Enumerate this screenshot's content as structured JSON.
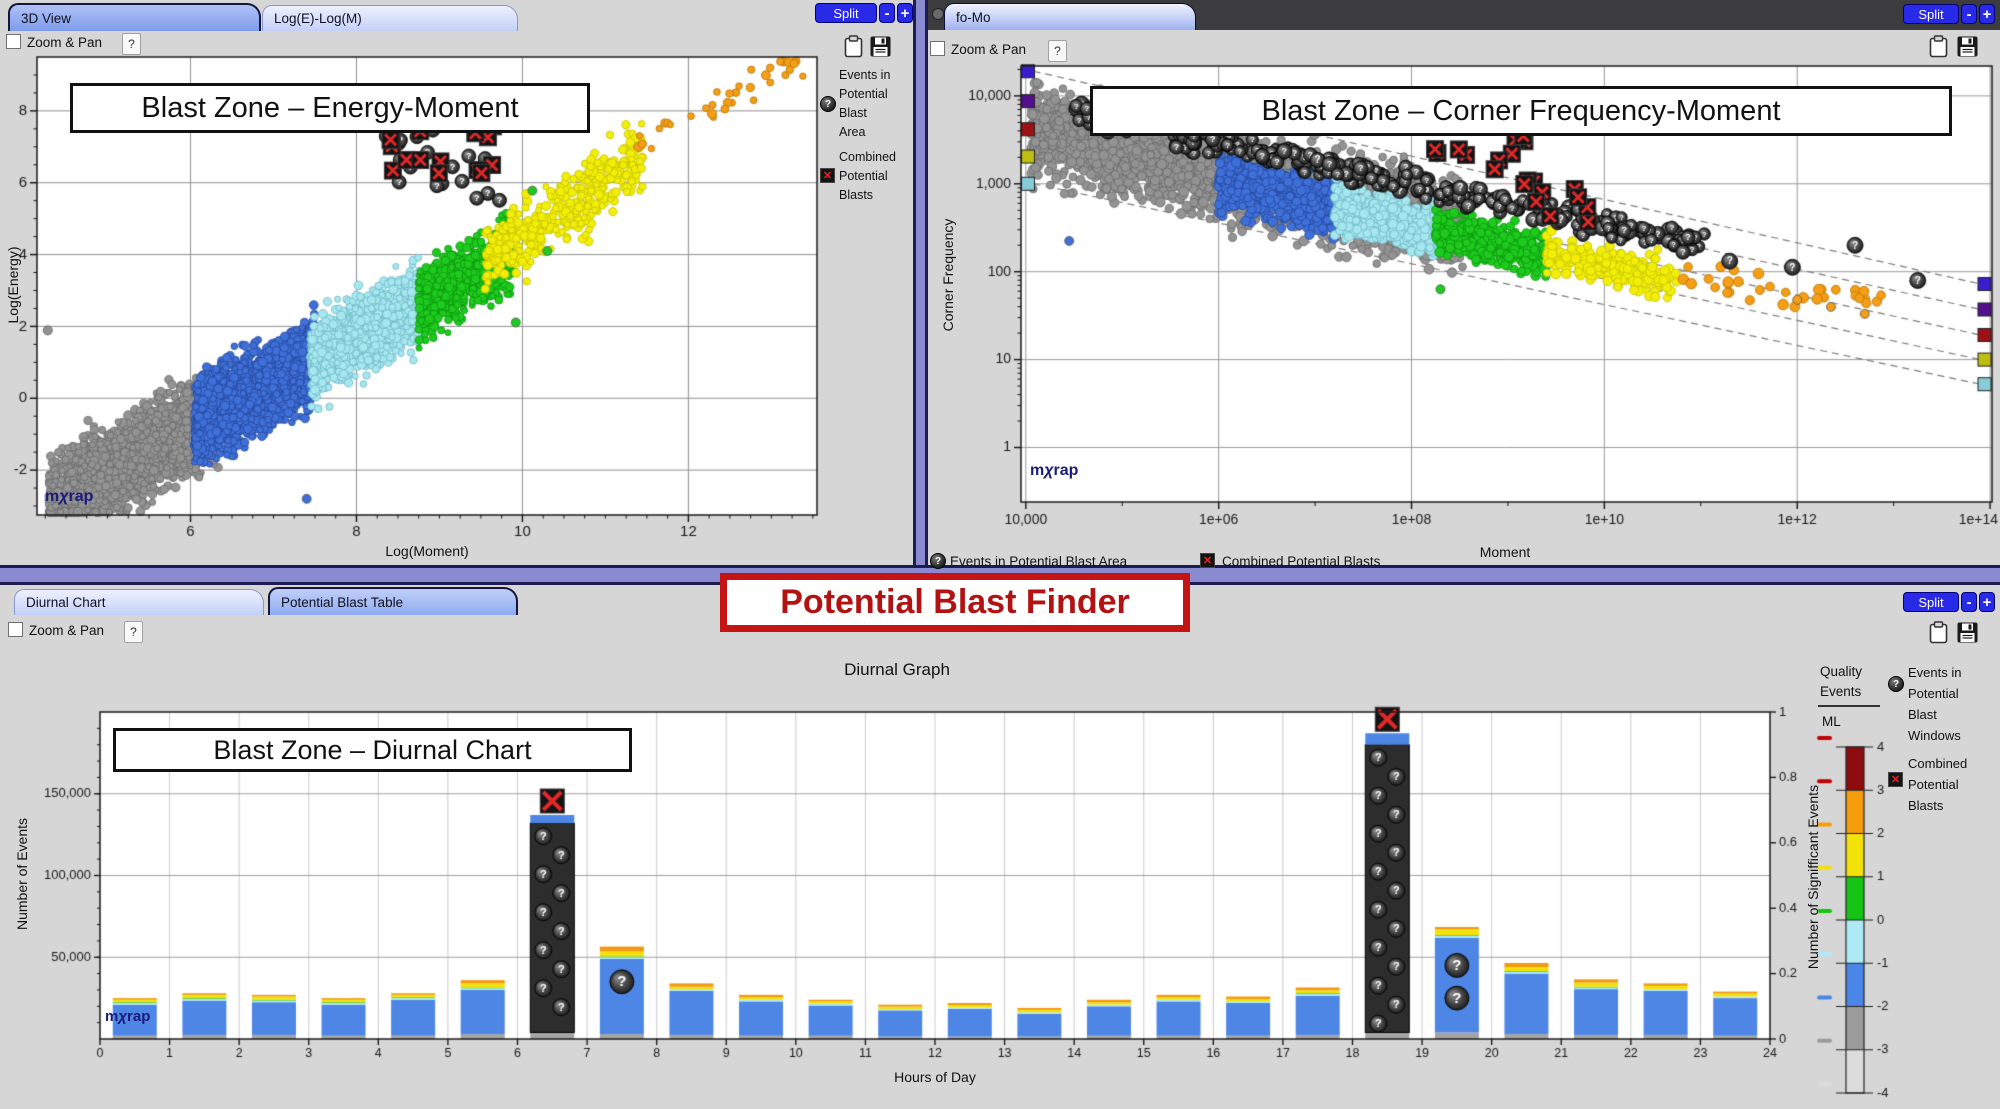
{
  "colors": {
    "accent_blue_button": "#2929e8",
    "panel_bg": "#d6d6d6",
    "divider_purple": "#8a8ad0",
    "banner_red": "#c41414",
    "watermark_navy": "#1b1b78"
  },
  "icons": {
    "query_sphere_glyph": "?",
    "red_x_glyph": "✕",
    "clipboard": "clipboard-icon",
    "save": "save-icon"
  },
  "panel_em": {
    "tabs": [
      {
        "label": "3D View"
      },
      {
        "label": "Log(E)-Log(M)"
      }
    ],
    "split_label": "Split",
    "minus_label": "-",
    "plus_label": "+",
    "zoom_pan_label": "Zoom & Pan",
    "help_label": "?",
    "overlay_title": "Blast Zone – Energy-Moment",
    "watermark_m": "m",
    "watermark_chi": "χ",
    "watermark_rap": "rap",
    "xlabel": "Log(Moment)",
    "ylabel": "Log(Energy)",
    "legend": [
      {
        "icon": "query-sphere-icon",
        "lines": [
          "Events in",
          "Potential",
          "Blast",
          "Area"
        ]
      },
      {
        "icon": "red-x-icon",
        "lines": [
          "Combined",
          "Potential",
          "Blasts"
        ]
      }
    ]
  },
  "panel_fm": {
    "tab_label": "fo-Mo",
    "split_label": "Split",
    "minus_label": "-",
    "plus_label": "+",
    "zoom_pan_label": "Zoom & Pan",
    "help_label": "?",
    "overlay_title": "Blast Zone – Corner Frequency-Moment",
    "watermark_m": "m",
    "watermark_chi": "χ",
    "watermark_rap": "rap",
    "xlabel": "Moment",
    "ylabel": "Corner Frequency",
    "legend": [
      {
        "icon": "query-sphere-icon",
        "label": "Events in Potential Blast Area"
      },
      {
        "icon": "red-x-icon",
        "label": "Combined Potential Blasts"
      }
    ]
  },
  "banner": {
    "title": "Potential Blast Finder"
  },
  "panel_di": {
    "tabs": [
      {
        "label": "Diurnal Chart"
      },
      {
        "label": "Potential Blast Table"
      }
    ],
    "split_label": "Split",
    "minus_label": "-",
    "plus_label": "+",
    "zoom_pan_label": "Zoom & Pan",
    "help_label": "?",
    "chart_title": "Diurnal Graph",
    "overlay_title": "Blast Zone – Diurnal Chart",
    "watermark_m": "m",
    "watermark_chi": "χ",
    "watermark_rap": "rap",
    "xlabel": "Hours of Day",
    "ylabel_left": "Number of Events",
    "ylabel_right": "Number of Signifficant Events",
    "quality_legend": {
      "line1": "Quality",
      "line2": "Events",
      "ml_label": "ML"
    },
    "legend_right": [
      {
        "icon": "query-sphere-icon",
        "lines": [
          "Events in",
          "Potential",
          "Blast",
          "Windows"
        ]
      },
      {
        "icon": "red-x-icon",
        "lines": [
          "Combined",
          "Potential",
          "Blasts"
        ]
      }
    ]
  },
  "chart_data": [
    {
      "name": "energy_moment",
      "type": "scatter",
      "title": "Blast Zone – Energy-Moment",
      "xlabel": "Log(Moment)",
      "ylabel": "Log(Energy)",
      "xlim": [
        4.15,
        13.55
      ],
      "ylim": [
        -3.25,
        9.5
      ],
      "xticks": [
        6,
        8,
        10,
        12
      ],
      "yticks": [
        8,
        6,
        4,
        2,
        0,
        -2
      ],
      "trend_slope": 1.25,
      "trend_intercept": -8.3,
      "bands": [
        {
          "name": "gray",
          "color": "#939393",
          "edge": "#6b6b6b",
          "count": 2600,
          "xrange": [
            4.3,
            6.35
          ],
          "spread": 1.0
        },
        {
          "name": "blue",
          "color": "#3e70d9",
          "edge": "#27479b",
          "count": 2100,
          "xrange": [
            6.05,
            7.5
          ],
          "spread": 0.95
        },
        {
          "name": "cyan",
          "color": "#a6e7ef",
          "edge": "#6fb9c6",
          "count": 1300,
          "xrange": [
            7.45,
            8.8
          ],
          "spread": 0.85
        },
        {
          "name": "green",
          "color": "#1dcb1d",
          "edge": "#0f9410",
          "count": 800,
          "xrange": [
            8.75,
            9.9
          ],
          "spread": 0.78
        },
        {
          "name": "yellow",
          "color": "#f2ee06",
          "edge": "#c5c106",
          "count": 430,
          "xrange": [
            9.55,
            11.45
          ],
          "spread": 0.75,
          "slope": 1.55,
          "intercept": -11.0
        },
        {
          "name": "orange",
          "color": "#f59d15",
          "edge": "#b87608",
          "count": 34,
          "xrange": [
            11.3,
            13.45
          ],
          "spread": 0.45,
          "slope": 1.3,
          "intercept": -7.8
        }
      ],
      "outliers": [
        {
          "color": "#3e70d9",
          "x": 6.17,
          "y": 7.8
        },
        {
          "color": "#1dcb1d",
          "x": 10.12,
          "y": 5.78
        },
        {
          "color": "#1dcb1d",
          "x": 9.92,
          "y": 2.11
        },
        {
          "color": "#1dcb1d",
          "x": 10.3,
          "y": 4.1
        },
        {
          "color": "#939393",
          "x": 4.28,
          "y": 1.89
        },
        {
          "color": "#3e70d9",
          "x": 7.4,
          "y": -2.8
        }
      ],
      "query_cluster": {
        "xrange": [
          8.35,
          9.75
        ],
        "yrange": [
          5.5,
          7.9
        ],
        "count": 20
      },
      "blast_cluster": {
        "xrange": [
          8.4,
          9.65
        ],
        "yrange": [
          5.85,
          7.75
        ],
        "count": 15
      }
    },
    {
      "name": "corner_frequency_moment",
      "type": "scatter",
      "xscale": "log",
      "yscale": "log",
      "title": "Blast Zone – Corner Frequency-Moment",
      "xlabel": "Moment",
      "ylabel": "Corner Frequency",
      "xlim_log": [
        3.95,
        14.02
      ],
      "ylim_log": [
        -0.62,
        4.34
      ],
      "xtick_labels": [
        "10,000",
        "1e+06",
        "1e+08",
        "1e+10",
        "1e+12",
        "1e+14"
      ],
      "xticks_log": [
        4,
        6,
        8,
        10,
        12,
        14
      ],
      "ytick_labels": [
        "10,000",
        "1,000",
        "100",
        "10",
        "1"
      ],
      "yticks_log": [
        4,
        3,
        2,
        1,
        0
      ],
      "guide_lines": {
        "x_log": [
          4.08,
          13.9
        ],
        "left_f_log": [
          4.28,
          3.94,
          3.62,
          3.31,
          3.0
        ],
        "right_f_log": [
          1.86,
          1.57,
          1.28,
          1.0,
          0.72
        ]
      },
      "edge_marker_colors": [
        "#3a1ecb",
        "#54108c",
        "#9c1016",
        "#bdbd12",
        "#88ccd8"
      ],
      "bands": [
        {
          "name": "gray",
          "color": "#939393",
          "edge": "#6b6b6b",
          "count": 2800,
          "xrange": [
            4.05,
            8.55
          ],
          "f0": 3.6,
          "slope": -0.24,
          "spread": 0.4,
          "r": 3.8
        },
        {
          "name": "blue",
          "color": "#3e70d9",
          "edge": "#27479b",
          "count": 800,
          "xrange": [
            6.0,
            7.2
          ],
          "f0": 3.02,
          "slope": -0.24,
          "spread": 0.26,
          "r": 3.8
        },
        {
          "name": "cyan",
          "color": "#a6e7ef",
          "edge": "#6fb9c6",
          "count": 600,
          "xrange": [
            7.2,
            8.25
          ],
          "f0": 2.73,
          "slope": -0.24,
          "spread": 0.22,
          "r": 3.8
        },
        {
          "name": "green",
          "color": "#1dcb1d",
          "edge": "#0f9410",
          "count": 430,
          "xrange": [
            8.25,
            9.4
          ],
          "f0": 2.48,
          "slope": -0.24,
          "spread": 0.2,
          "r": 3.8
        },
        {
          "name": "yellow",
          "color": "#f2ee06",
          "edge": "#c5c106",
          "count": 240,
          "xrange": [
            9.4,
            10.75
          ],
          "f0": 2.2,
          "slope": -0.22,
          "spread": 0.17,
          "r": 3.8
        },
        {
          "name": "orange",
          "color": "#f59d15",
          "edge": "#b87608",
          "count": 34,
          "xrange": [
            10.75,
            12.9
          ],
          "f0": 1.95,
          "slope": -0.18,
          "spread": 0.15,
          "r": 4.2
        }
      ],
      "query_band": {
        "count": 320,
        "xrange": [
          4.5,
          11.05
        ],
        "f0": 3.82,
        "slope": -0.235,
        "spread": 0.12
      },
      "query_isolated": [
        [
          11.3,
          2.12
        ],
        [
          11.95,
          2.05
        ],
        [
          12.6,
          2.3
        ],
        [
          13.25,
          1.9
        ]
      ],
      "isolated_points": [
        {
          "color": "#f59d15",
          "x": 12.0,
          "y": 1.68
        },
        {
          "color": "#f59d15",
          "x": 12.35,
          "y": 1.6
        },
        {
          "color": "#f59d15",
          "x": 12.7,
          "y": 1.52
        },
        {
          "color": "#3e70d9",
          "x": 4.45,
          "y": 2.35
        },
        {
          "color": "#c9c9c9",
          "x": 5.05,
          "y": 3.9
        },
        {
          "color": "#1dcb1d",
          "x": 8.3,
          "y": 1.8
        }
      ],
      "blast_clusters": [
        {
          "xrange": [
            8.15,
            9.4
          ],
          "yrange": [
            2.9,
            3.55
          ],
          "count": 14
        },
        {
          "xrange": [
            9.25,
            9.85
          ],
          "yrange": [
            2.45,
            2.95
          ],
          "count": 6
        }
      ]
    },
    {
      "name": "diurnal",
      "type": "bar",
      "stacked": true,
      "title": "Diurnal Graph",
      "categories": [
        0,
        1,
        2,
        3,
        4,
        5,
        6,
        7,
        8,
        9,
        10,
        11,
        12,
        13,
        14,
        15,
        16,
        17,
        18,
        19,
        20,
        21,
        22,
        23
      ],
      "xlabel": "Hours of Day",
      "ylabel": "Number of Events",
      "ylabel_right": "Number of Signifficant Events",
      "ylim": [
        0,
        200000
      ],
      "ytick_values": [
        50000,
        100000,
        150000
      ],
      "ytick_labels": [
        "50,000",
        "100,000",
        "150,000"
      ],
      "xticks": [
        0,
        1,
        2,
        3,
        4,
        5,
        6,
        7,
        8,
        9,
        10,
        11,
        12,
        13,
        14,
        15,
        16,
        17,
        18,
        19,
        20,
        21,
        22,
        23,
        24
      ],
      "right_ylim": [
        0,
        1
      ],
      "right_ytick_labels": [
        "0",
        "0.2",
        "0.4",
        "0.6",
        "0.8",
        "1"
      ],
      "series": [
        {
          "name": "gray-base",
          "color": "#a4a4a4",
          "values": [
            2000,
            2500,
            2500,
            2000,
            2000,
            3000,
            4000,
            3000,
            2500,
            2000,
            2000,
            1500,
            1500,
            1500,
            2000,
            2000,
            2000,
            2500,
            4000,
            4000,
            3000,
            2500,
            2500,
            2000
          ]
        },
        {
          "name": "blast-window-dark",
          "color": "#2d2d2d",
          "pattern": "query",
          "values": [
            0,
            0,
            0,
            0,
            0,
            0,
            128000,
            0,
            0,
            0,
            0,
            0,
            0,
            0,
            0,
            0,
            0,
            0,
            176000,
            0,
            0,
            0,
            0,
            0
          ]
        },
        {
          "name": "blue",
          "color": "#4e86e6",
          "values": [
            19000,
            21000,
            20000,
            19000,
            22000,
            27000,
            5000,
            46000,
            27000,
            21000,
            18500,
            16000,
            17000,
            14000,
            18000,
            21000,
            20000,
            24000,
            7000,
            58000,
            37000,
            28000,
            27000,
            23000
          ]
        },
        {
          "name": "pale-cyan",
          "color": "#ade9f4",
          "values": [
            1000,
            1000,
            1000,
            1000,
            1000,
            1000,
            0,
            1000,
            1000,
            1000,
            1000,
            800,
            800,
            800,
            1000,
            1000,
            1000,
            1000,
            0,
            1000,
            1000,
            1000,
            1000,
            1000
          ]
        },
        {
          "name": "green",
          "color": "#2cc42c",
          "values": [
            500,
            500,
            500,
            500,
            500,
            500,
            0,
            500,
            0,
            0,
            0,
            0,
            0,
            0,
            0,
            0,
            0,
            500,
            0,
            500,
            500,
            500,
            0,
            0
          ]
        },
        {
          "name": "yellow",
          "color": "#f2e20a",
          "values": [
            1500,
            2000,
            2000,
            1500,
            1500,
            2500,
            0,
            3000,
            1500,
            1500,
            1500,
            1500,
            1500,
            1500,
            1500,
            1500,
            1500,
            1800,
            0,
            3500,
            2500,
            2500,
            2000,
            1800
          ]
        },
        {
          "name": "orange",
          "color": "#f2990f",
          "values": [
            1000,
            1000,
            1000,
            1000,
            1000,
            2000,
            0,
            3000,
            2000,
            1500,
            1000,
            1200,
            1200,
            1200,
            1500,
            1500,
            1500,
            1700,
            0,
            1500,
            2500,
            2000,
            1500,
            1200
          ]
        }
      ],
      "blast_window_markers": [
        6,
        18
      ],
      "query_markers": {
        "7": [
          35000
        ],
        "19": [
          25000,
          45000
        ]
      },
      "ml_scale": {
        "values": [
          4,
          3,
          2,
          1,
          0,
          -1,
          -2,
          -3,
          -4
        ],
        "segment_colors": [
          "#8e0b10",
          "#f59c0c",
          "#f2e20a",
          "#16c416",
          "#aeeaf5",
          "#4a86e8",
          "#9b9b9b",
          "#dcdcdc"
        ],
        "dash_colors": [
          "#c00000",
          "#c00000",
          "#f59c0c",
          "#f2e20a",
          "#16c416",
          "#aeeaf5",
          "#4a86e8",
          "#9b9b9b",
          "#dcdcdc"
        ]
      }
    }
  ]
}
